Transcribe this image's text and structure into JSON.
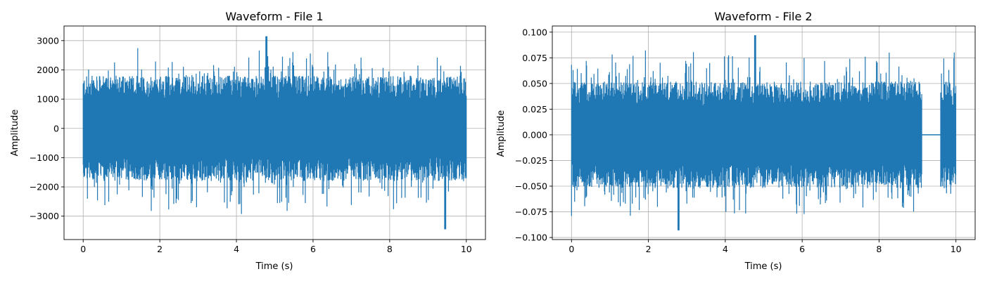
{
  "chart_data": [
    {
      "type": "line",
      "title": "Waveform - File 1",
      "xlabel": "Time (s)",
      "ylabel": "Amplitude",
      "xlim": [
        -0.5,
        10.5
      ],
      "ylim": [
        -3800,
        3500
      ],
      "xticks": [
        0,
        2,
        4,
        6,
        8,
        10
      ],
      "xtick_labels": [
        "0",
        "2",
        "4",
        "6",
        "8",
        "10"
      ],
      "yticks": [
        -3000,
        -2000,
        -1000,
        0,
        1000,
        2000,
        3000
      ],
      "ytick_labels": [
        "−3000",
        "−2000",
        "−1000",
        "0",
        "1000",
        "2000",
        "3000"
      ],
      "grid": true,
      "line_color": "#1f77b4",
      "series": [
        {
          "x": [
            0,
            10
          ],
          "envelope": {
            "typical_min": -1800,
            "typical_max": 1800,
            "peak_max": 3150,
            "peak_max_at": 4.78,
            "peak_min": -3450,
            "peak_min_at": 9.45
          }
        }
      ]
    },
    {
      "type": "line",
      "title": "Waveform - File 2",
      "xlabel": "Time (s)",
      "ylabel": "Amplitude",
      "xlim": [
        -0.5,
        10.5
      ],
      "ylim": [
        -0.102,
        0.106
      ],
      "xticks": [
        0,
        2,
        4,
        6,
        8,
        10
      ],
      "xtick_labels": [
        "0",
        "2",
        "4",
        "6",
        "8",
        "10"
      ],
      "yticks": [
        -0.1,
        -0.075,
        -0.05,
        -0.025,
        0.0,
        0.025,
        0.05,
        0.075,
        0.1
      ],
      "ytick_labels": [
        "−0.100",
        "−0.075",
        "−0.050",
        "−0.025",
        "0.000",
        "0.025",
        "0.050",
        "0.075",
        "0.100"
      ],
      "grid": true,
      "line_color": "#1f77b4",
      "series": [
        {
          "x": [
            0,
            10
          ],
          "envelope": {
            "typical_min": -0.052,
            "typical_max": 0.052,
            "peak_max": 0.097,
            "peak_max_at": 4.78,
            "peak_min": -0.093,
            "peak_min_at": 2.78
          },
          "silence": [
            9.12,
            9.6
          ]
        }
      ]
    }
  ]
}
